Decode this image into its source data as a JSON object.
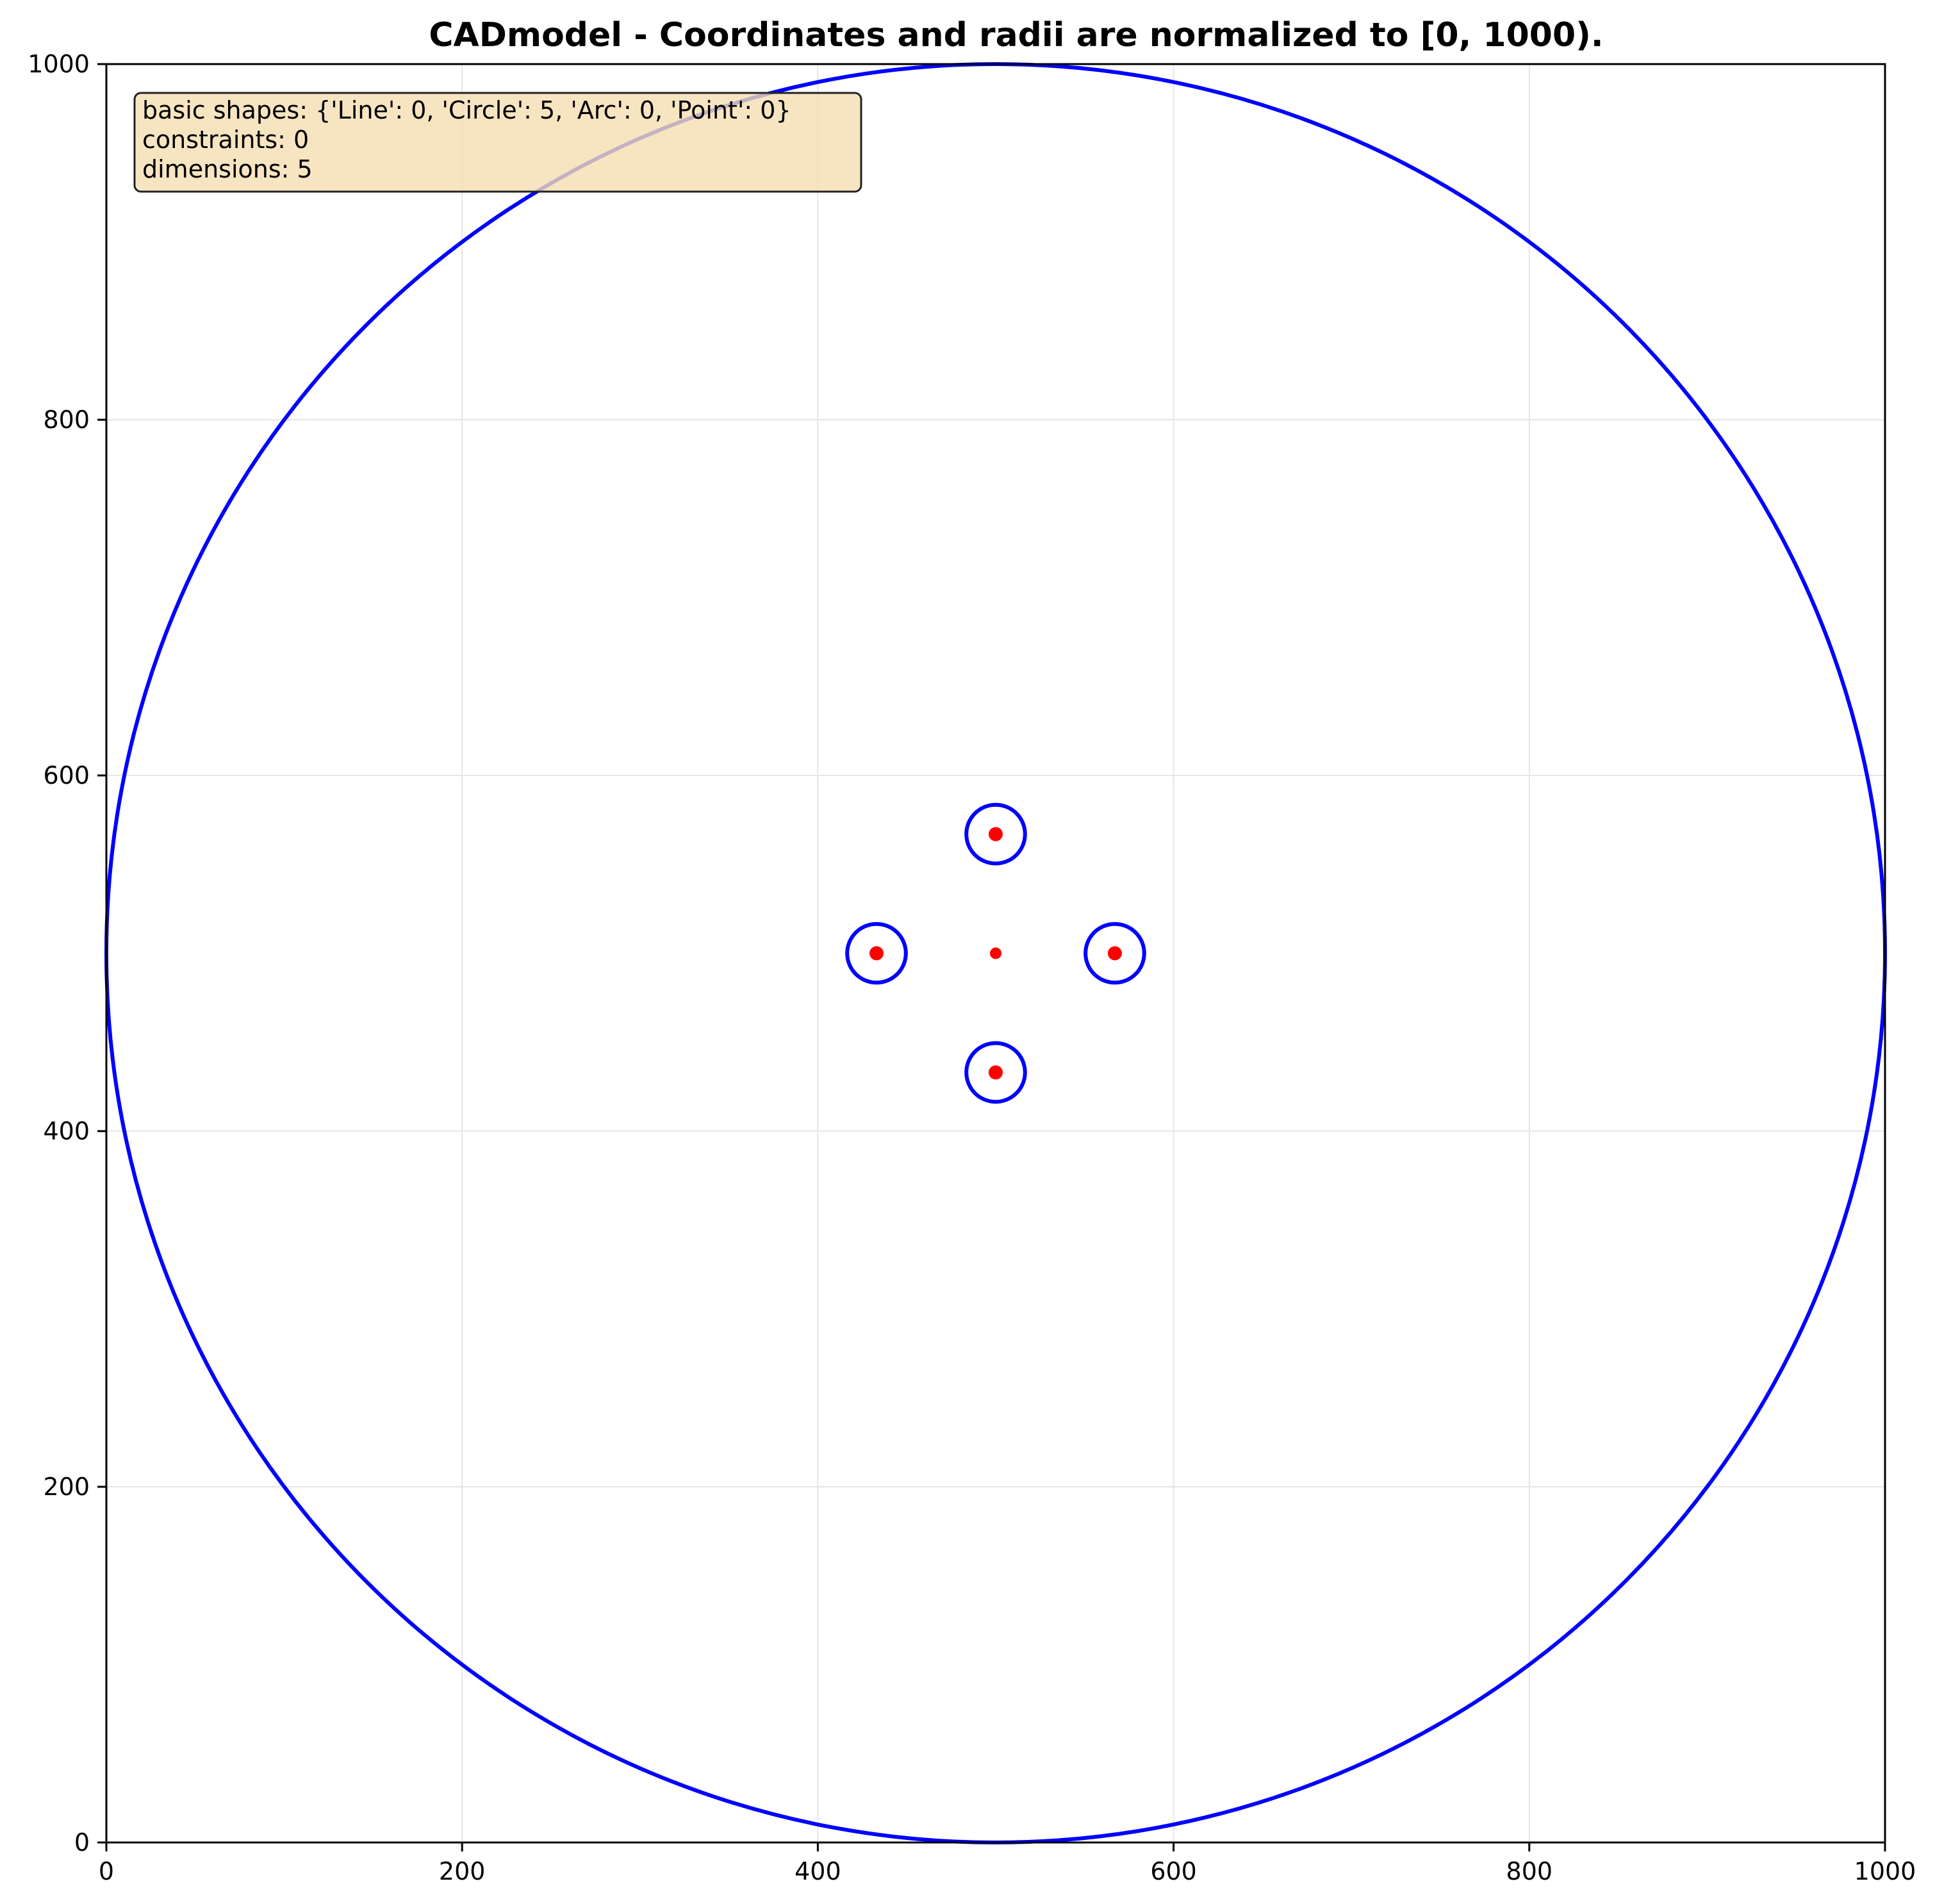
{
  "chart_data": {
    "type": "scatter",
    "title": "CADmodel - Coordinates and radii are normalized to [0, 1000).",
    "xlabel": "",
    "ylabel": "",
    "xlim": [
      0,
      1000
    ],
    "ylim": [
      0,
      1000
    ],
    "x_ticks": [
      0,
      200,
      400,
      600,
      800,
      1000
    ],
    "y_ticks": [
      0,
      200,
      400,
      600,
      800,
      1000
    ],
    "x_tick_labels": [
      "0",
      "200",
      "400",
      "600",
      "800",
      "1000"
    ],
    "y_tick_labels": [
      "0",
      "200",
      "400",
      "600",
      "800",
      "1000"
    ],
    "grid": true,
    "circles": [
      {
        "cx": 500,
        "cy": 500,
        "r": 500
      },
      {
        "cx": 500,
        "cy": 567,
        "r": 16.5
      },
      {
        "cx": 433,
        "cy": 500,
        "r": 16.5
      },
      {
        "cx": 567,
        "cy": 500,
        "r": 16.5
      },
      {
        "cx": 500,
        "cy": 433,
        "r": 16.5
      }
    ],
    "points": [
      {
        "x": 500,
        "y": 567
      },
      {
        "x": 433,
        "y": 500
      },
      {
        "x": 500,
        "y": 500
      },
      {
        "x": 567,
        "y": 500
      },
      {
        "x": 500,
        "y": 433
      }
    ],
    "annotation": {
      "position": "top-left",
      "lines": [
        "basic shapes: {'Line': 0, 'Circle': 5, 'Arc': 0, 'Point': 0}",
        "constraints: 0",
        "dimensions: 5"
      ]
    },
    "colors": {
      "circle": "#0000ff",
      "point": "#ff0000",
      "grid": "#e6e6e6",
      "annotation_fill": "#f5deb3",
      "annotation_stroke": "#222222"
    }
  }
}
